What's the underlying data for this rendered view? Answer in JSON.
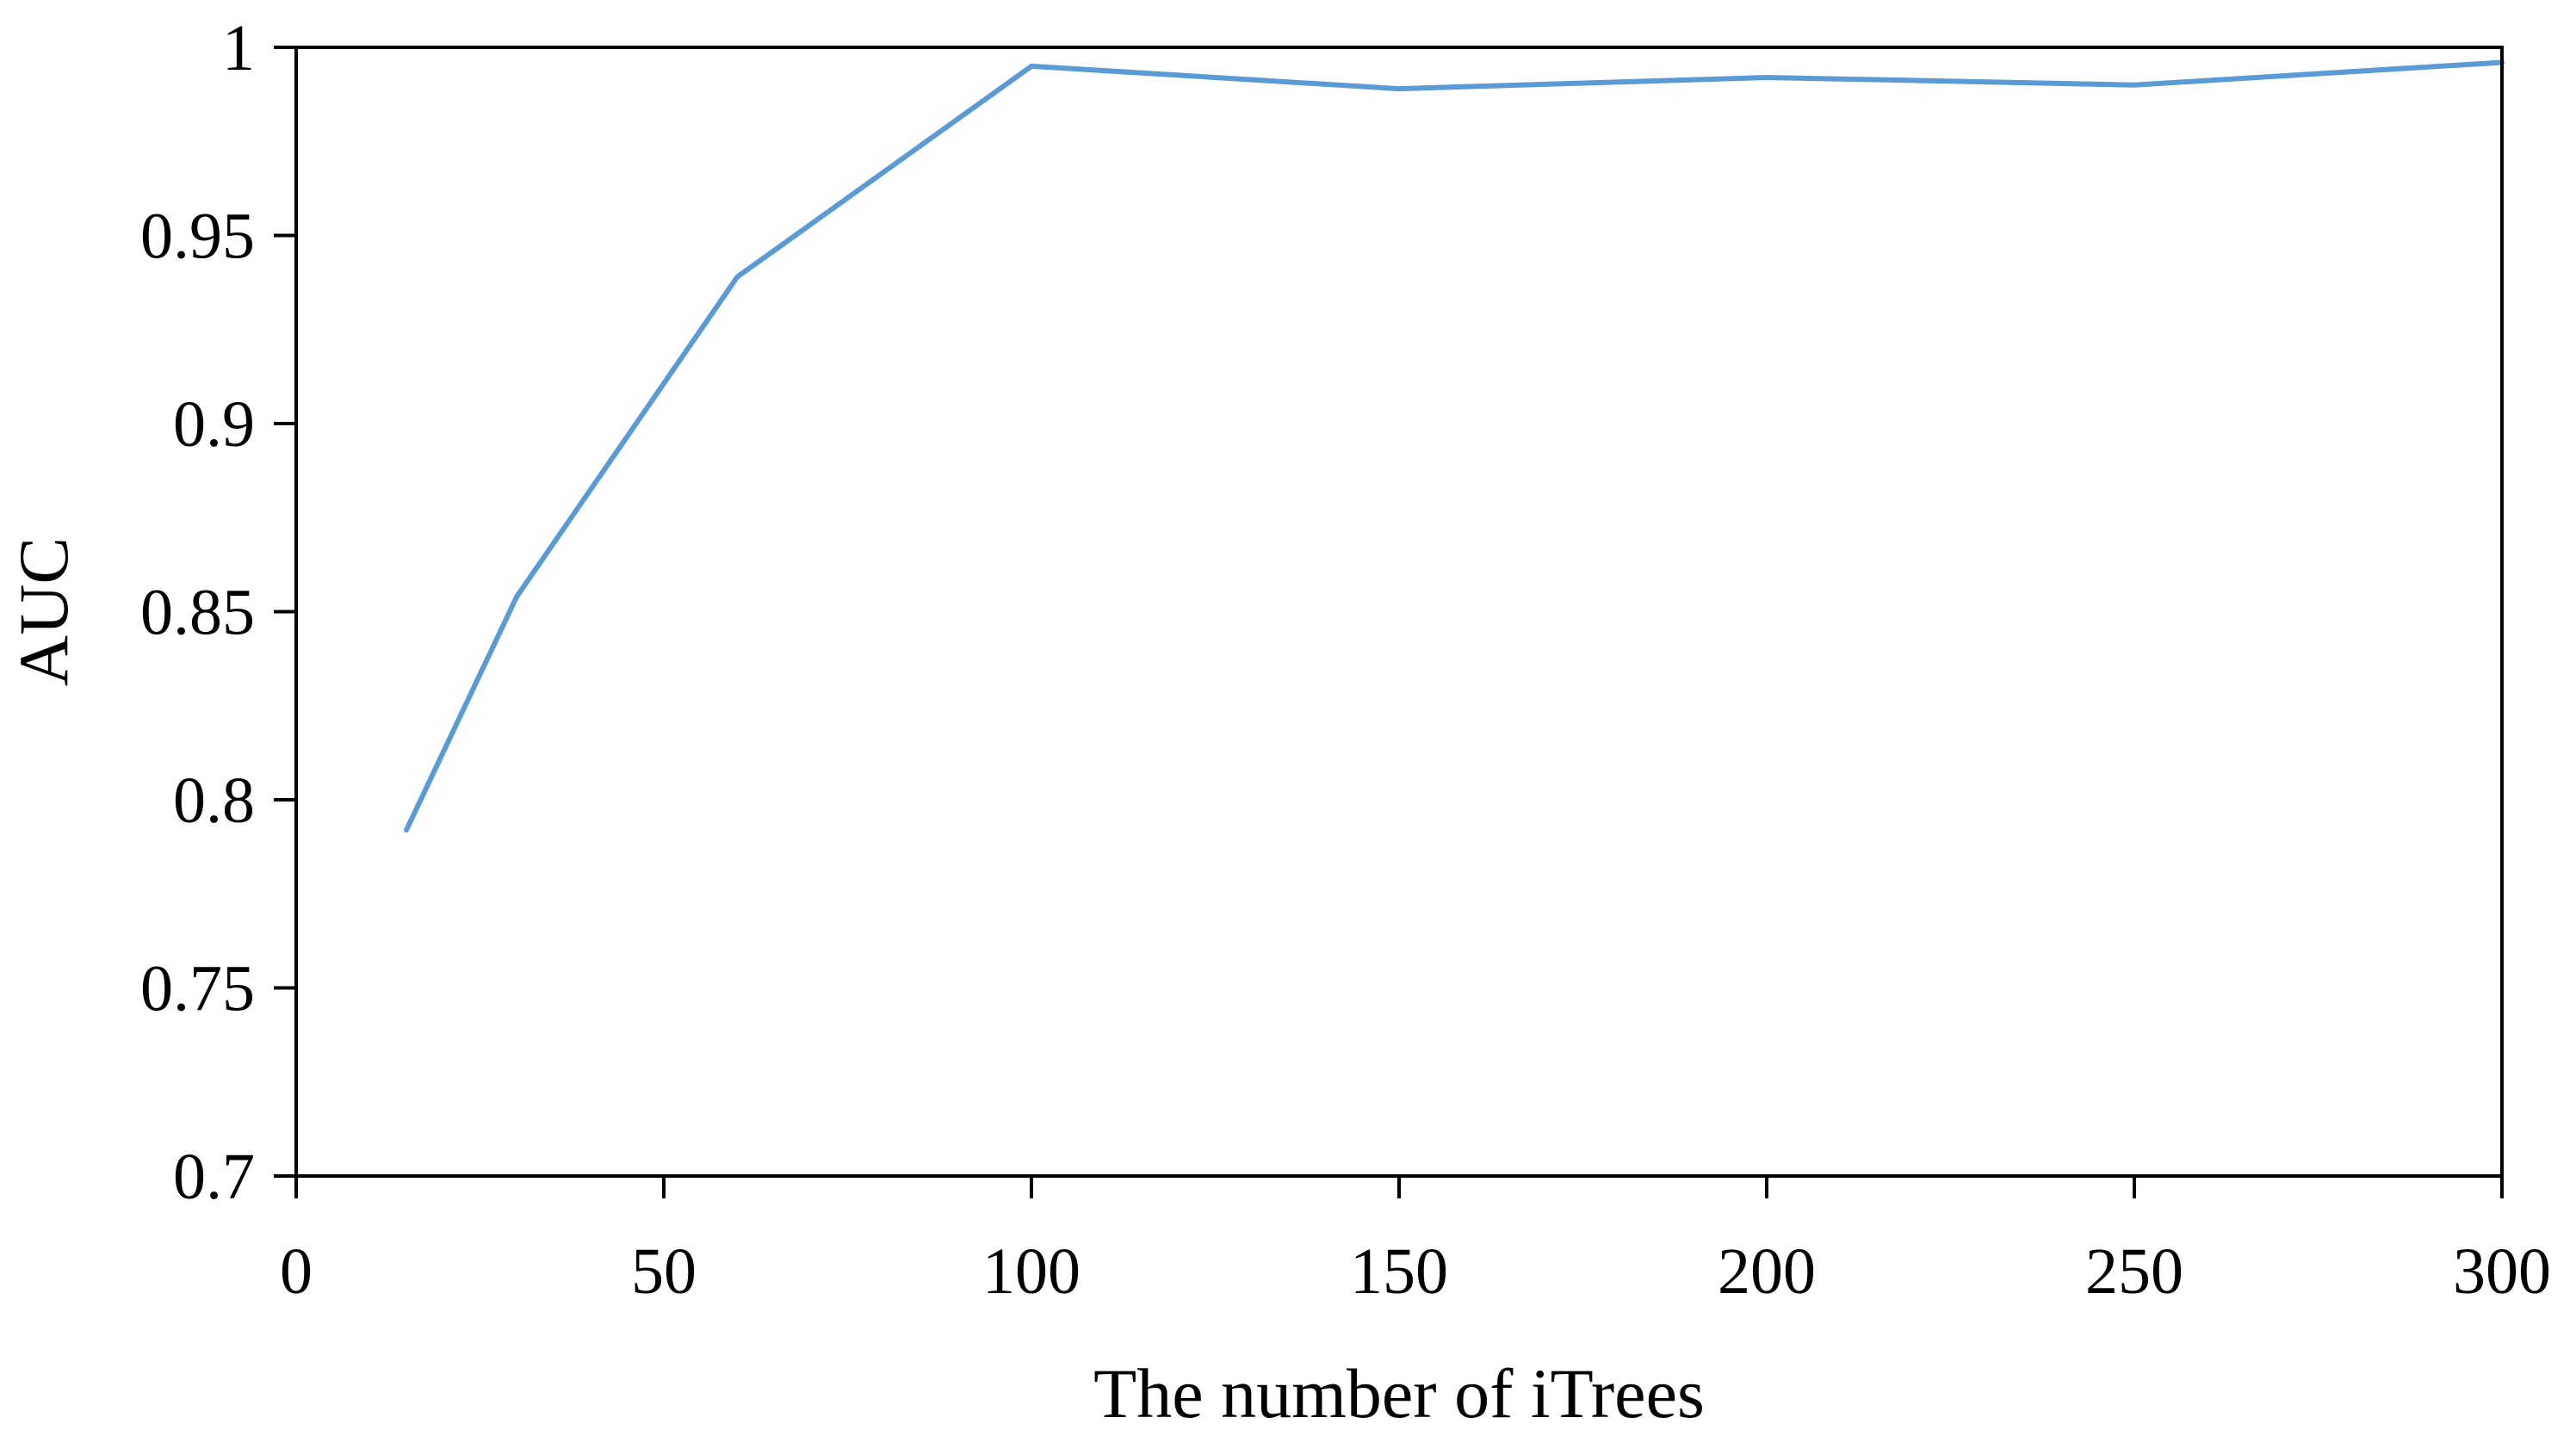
{
  "chart_data": {
    "type": "line",
    "title": "",
    "xlabel": "The number of iTrees",
    "ylabel": "AUC",
    "xlim": [
      0,
      300
    ],
    "ylim": [
      0.7,
      1
    ],
    "xticks": [
      0,
      50,
      100,
      150,
      200,
      250,
      300
    ],
    "yticks": [
      0.7,
      0.75,
      0.8,
      0.85,
      0.9,
      0.95,
      1
    ],
    "xtick_labels": [
      "0",
      "50",
      "100",
      "150",
      "200",
      "250",
      "300"
    ],
    "ytick_labels": [
      "0.7",
      "0.75",
      "0.8",
      "0.85",
      "0.9",
      "0.95",
      "1"
    ],
    "grid": false,
    "legend": "none",
    "series": [
      {
        "color": "#5b9bd5",
        "x": [
          15,
          30,
          60,
          100,
          150,
          200,
          250,
          300
        ],
        "y": [
          0.792,
          0.854,
          0.939,
          0.995,
          0.989,
          0.992,
          0.99,
          0.996
        ]
      }
    ]
  }
}
